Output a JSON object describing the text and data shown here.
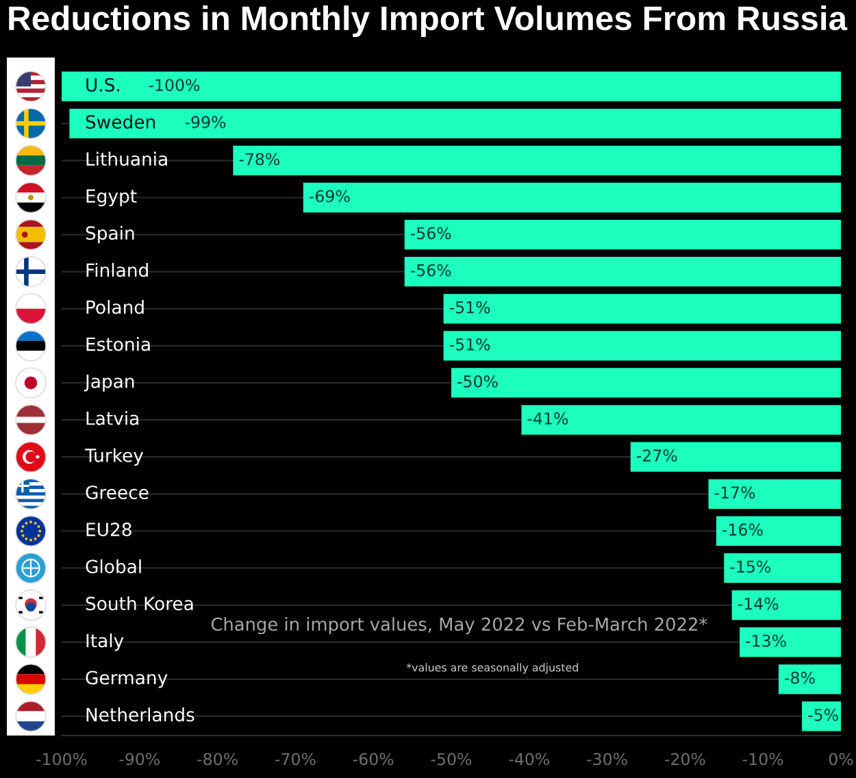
{
  "chart_data": {
    "type": "bar",
    "orientation": "horizontal",
    "title": "Reductions in Monthly Import Volumes From Russia",
    "categories": [
      "U.S.",
      "Sweden",
      "Lithuania",
      "Egypt",
      "Spain",
      "Finland",
      "Poland",
      "Estonia",
      "Japan",
      "Latvia",
      "Turkey",
      "Greece",
      "EU28",
      "Global",
      "South Korea",
      "Italy",
      "Germany",
      "Netherlands"
    ],
    "values": [
      -100,
      -99,
      -78,
      -69,
      -56,
      -56,
      -51,
      -51,
      -50,
      -41,
      -27,
      -17,
      -16,
      -15,
      -14,
      -13,
      -8,
      -5
    ],
    "value_labels": [
      "-100%",
      "-99%",
      "-78%",
      "-69%",
      "-56%",
      "-56%",
      "-51%",
      "-51%",
      "-50%",
      "-41%",
      "-27%",
      "-17%",
      "-16%",
      "-15%",
      "-14%",
      "-13%",
      "-8%",
      "-5%"
    ],
    "color": "#1cffbf",
    "xlim": [
      -100,
      0
    ],
    "xticks": [
      {
        "value": -100,
        "label": "-100%"
      },
      {
        "value": -90,
        "label": "-90%"
      },
      {
        "value": -80,
        "label": "-80%"
      },
      {
        "value": -70,
        "label": "-70%"
      },
      {
        "value": -60,
        "label": "-60%"
      },
      {
        "value": -50,
        "label": "-50%"
      },
      {
        "value": -40,
        "label": "-40%"
      },
      {
        "value": -30,
        "label": "-30%"
      },
      {
        "value": -20,
        "label": "-20%"
      },
      {
        "value": -10,
        "label": "-10%"
      },
      {
        "value": 0,
        "label": "0%"
      }
    ],
    "grid": "y",
    "annotations": [
      "Change in import values, May 2022 vs Feb-March 2022*",
      "*values are seasonally adjusted"
    ]
  }
}
